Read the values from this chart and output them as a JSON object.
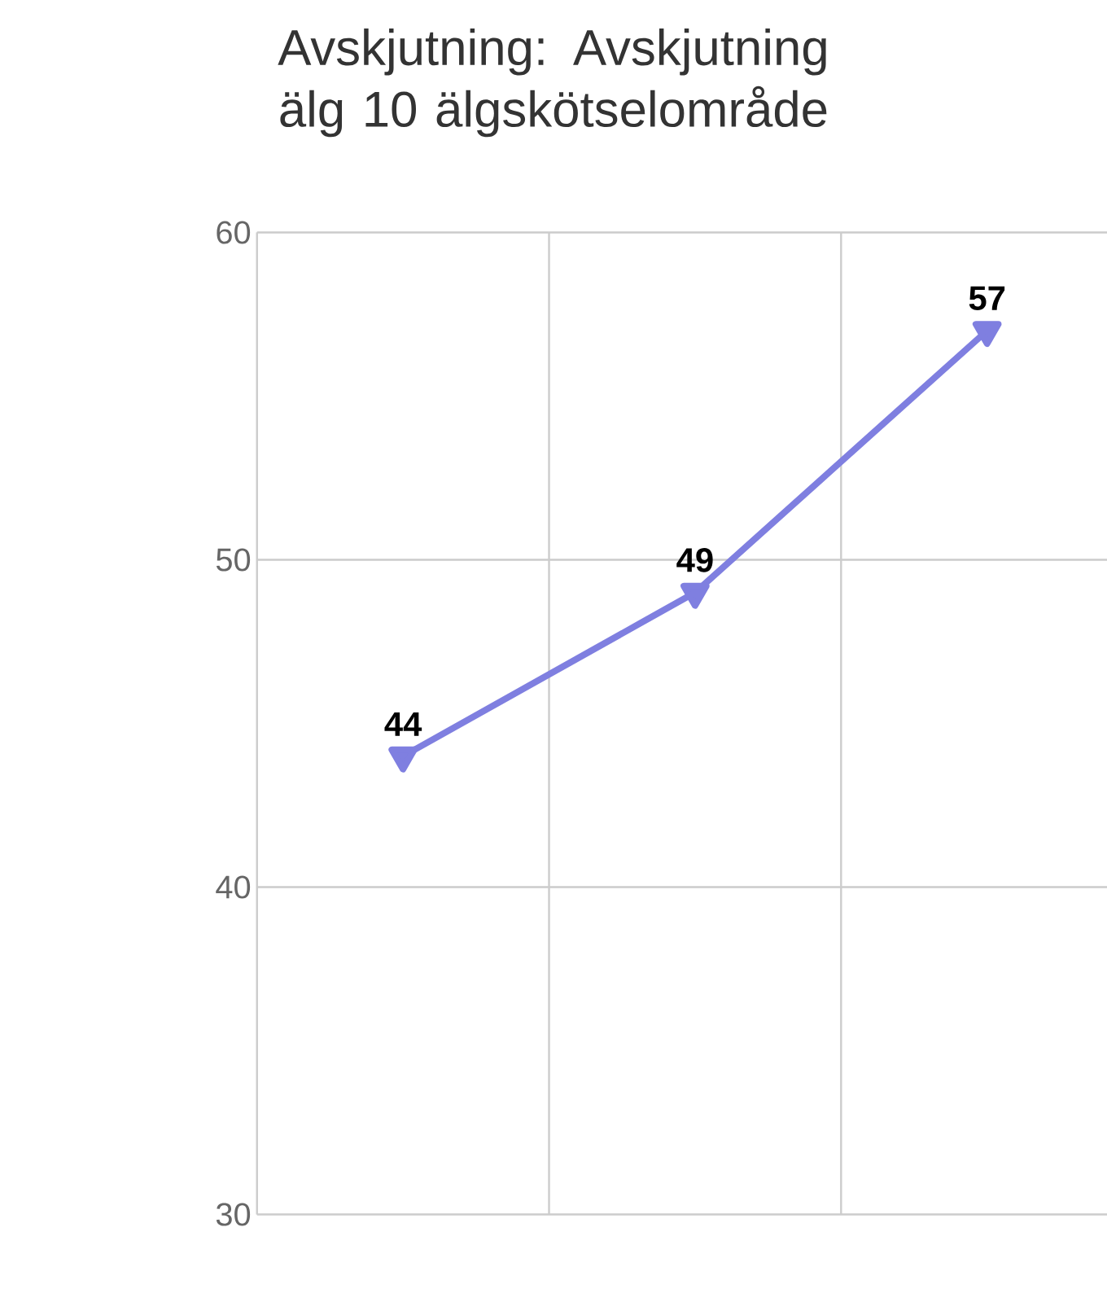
{
  "chart_data": {
    "type": "line",
    "title": "Avskjutning: Avskjutning älg 10 älgskötselområde",
    "categories": [
      null,
      null,
      null
    ],
    "series": [
      {
        "color": "#7f7fe0",
        "values": [
          44,
          49,
          57
        ]
      }
    ],
    "ylim": [
      30,
      60
    ],
    "yticks": [
      30,
      40,
      50,
      60
    ],
    "grid": true,
    "marker": "triangle",
    "line_style": "solid",
    "data_labels": true
  }
}
